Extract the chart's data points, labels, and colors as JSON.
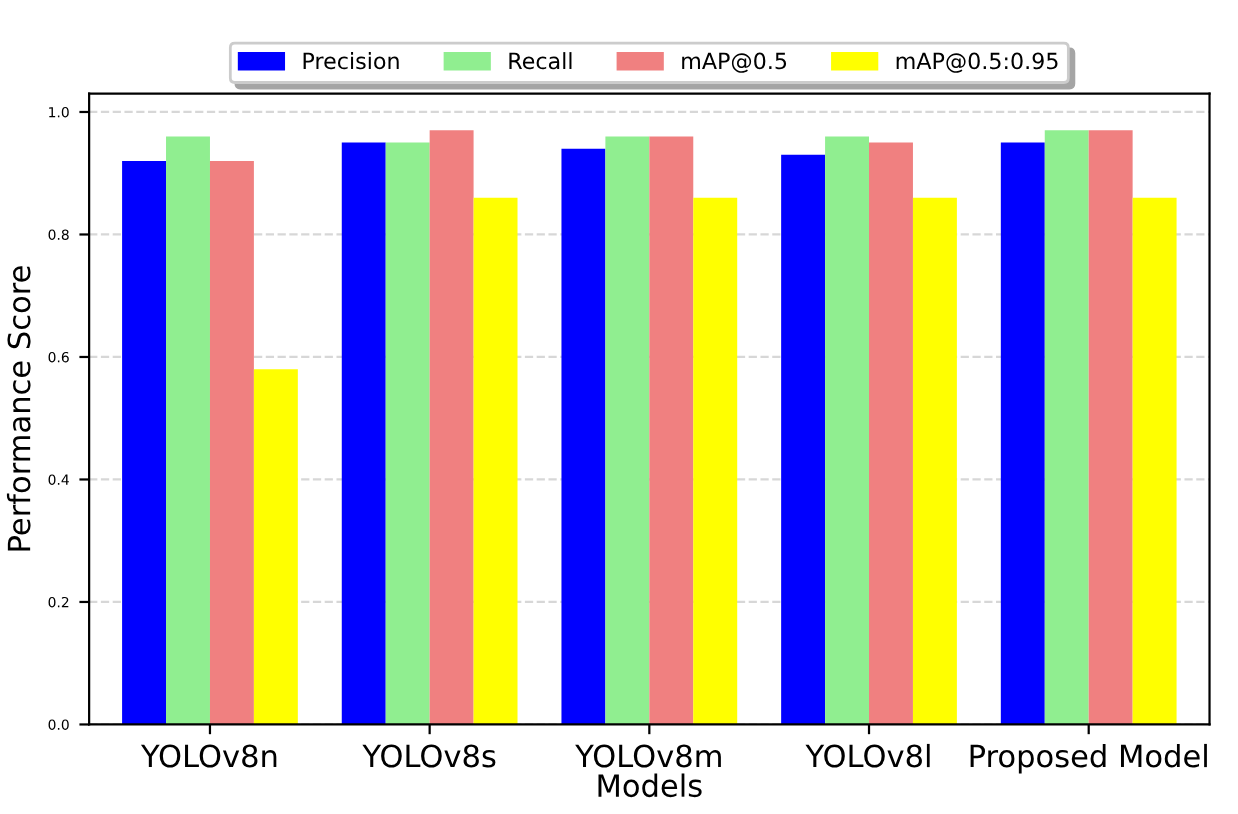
{
  "chart_data": {
    "type": "bar",
    "xlabel": "Models",
    "ylabel": "Performance Score",
    "categories": [
      "YOLOv8n",
      "YOLOv8s",
      "YOLOv8m",
      "YOLOv8l",
      "Proposed Model"
    ],
    "series": [
      {
        "name": "Precision",
        "color": "#0000ff",
        "values": [
          0.92,
          0.95,
          0.94,
          0.93,
          0.95
        ]
      },
      {
        "name": "Recall",
        "color": "#90ee90",
        "values": [
          0.96,
          0.95,
          0.96,
          0.96,
          0.97
        ]
      },
      {
        "name": "mAP@0.5",
        "color": "#f08080",
        "values": [
          0.92,
          0.97,
          0.96,
          0.95,
          0.97
        ]
      },
      {
        "name": "mAP@0.5:0.95",
        "color": "#ffff00",
        "values": [
          0.58,
          0.86,
          0.86,
          0.86,
          0.86
        ]
      }
    ],
    "ylim": [
      0,
      1.03
    ],
    "yticks": [
      {
        "value": 0,
        "label": "0.0"
      },
      0.2,
      0.4,
      0.6,
      0.8,
      {
        "value": 1,
        "label": "1.0"
      }
    ],
    "grid": "y",
    "legend": "top"
  }
}
